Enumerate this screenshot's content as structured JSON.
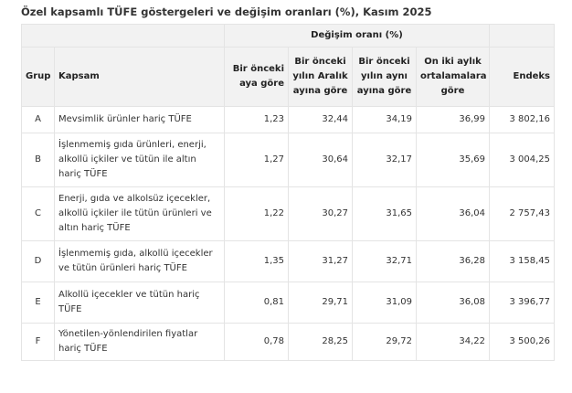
{
  "title": "Özel kapsamlı TÜFE göstergeleri ve değişim oranları (%), Kasım 2025",
  "table": {
    "super_header": "Değişim oranı (%)",
    "headers": {
      "grup": "Grup",
      "kapsam": "Kapsam",
      "col1": "Bir önceki aya göre",
      "col2": "Bir önceki yılın Aralık ayına göre",
      "col3": "Bir önceki yılın aynı ayına göre",
      "col4": "On iki aylık ortalamalara göre",
      "endeks": "Endeks"
    },
    "rows": [
      {
        "grup": "A",
        "kapsam": "Mevsimlik ürünler hariç TÜFE",
        "c1": "1,23",
        "c2": "32,44",
        "c3": "34,19",
        "c4": "36,99",
        "endeks": "3 802,16"
      },
      {
        "grup": "B",
        "kapsam": "İşlenmemiş gıda ürünleri, enerji, alkollü içkiler ve tütün ile altın hariç TÜFE",
        "c1": "1,27",
        "c2": "30,64",
        "c3": "32,17",
        "c4": "35,69",
        "endeks": "3 004,25"
      },
      {
        "grup": "C",
        "kapsam": "Enerji, gıda ve alkolsüz içecekler, alkollü içkiler ile tütün ürünleri ve altın hariç TÜFE",
        "c1": "1,22",
        "c2": "30,27",
        "c3": "31,65",
        "c4": "36,04",
        "endeks": "2 757,43"
      },
      {
        "grup": "D",
        "kapsam": "İşlenmemiş gıda, alkollü içecekler ve tütün ürünleri hariç TÜFE",
        "c1": "1,35",
        "c2": "31,27",
        "c3": "32,71",
        "c4": "36,28",
        "endeks": "3 158,45"
      },
      {
        "grup": "E",
        "kapsam": "Alkollü içecekler ve tütün hariç TÜFE",
        "c1": "0,81",
        "c2": "29,71",
        "c3": "31,09",
        "c4": "36,08",
        "endeks": "3 396,77"
      },
      {
        "grup": "F",
        "kapsam": "Yönetilen-yönlendirilen fiyatlar hariç TÜFE",
        "c1": "0,78",
        "c2": "28,25",
        "c3": "29,72",
        "c4": "34,22",
        "endeks": "3 500,26"
      }
    ]
  }
}
